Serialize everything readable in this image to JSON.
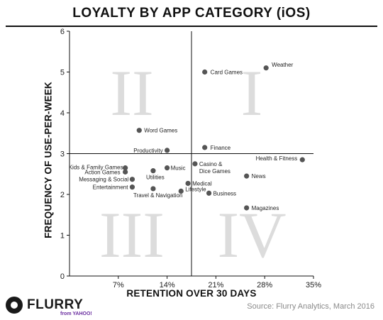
{
  "title": "LOYALTY BY APP CATEGORY (iOS)",
  "source": "Source: Flurry Analytics, March 2016",
  "logo": {
    "word": "FLURRY",
    "sub": "from YAHOO!"
  },
  "chart_data": {
    "type": "scatter",
    "title": "LOYALTY BY APP CATEGORY (iOS)",
    "xlabel": "RETENTION OVER 30 DAYS",
    "ylabel": "FREQUENCY OF USE-PER-WEEK",
    "xlim": [
      0,
      35
    ],
    "ylim": [
      0,
      6
    ],
    "xticks": [
      7,
      14,
      21,
      28,
      35
    ],
    "xtick_labels": [
      "7%",
      "14%",
      "21%",
      "28%",
      "35%"
    ],
    "yticks": [
      0,
      1,
      2,
      3,
      4,
      5,
      6
    ],
    "ytick_labels": [
      "0",
      "1",
      "2",
      "3",
      "4",
      "5",
      "6"
    ],
    "grid": false,
    "divider_x": 17.5,
    "divider_y": 3,
    "quadrant_labels": [
      "I",
      "II",
      "III",
      "IV"
    ],
    "point_color": "#555555",
    "points": [
      {
        "label": "Weather",
        "x": 28.2,
        "y": 5.1
      },
      {
        "label": "Card Games",
        "x": 19.4,
        "y": 5.0
      },
      {
        "label": "Word Games",
        "x": 10.0,
        "y": 3.57
      },
      {
        "label": "Productivity",
        "x": 14.0,
        "y": 3.08
      },
      {
        "label": "Finance",
        "x": 19.4,
        "y": 3.15
      },
      {
        "label": "Health & Fitness",
        "x": 33.4,
        "y": 2.85
      },
      {
        "label": "Casino & Dice Games",
        "x": 18.0,
        "y": 2.75
      },
      {
        "label": "Kids & Family Games",
        "x": 8.0,
        "y": 2.65
      },
      {
        "label": "Action Games",
        "x": 8.0,
        "y": 2.55
      },
      {
        "label": "Music",
        "x": 14.0,
        "y": 2.65
      },
      {
        "label": "Utilities",
        "x": 12.0,
        "y": 2.58
      },
      {
        "label": "Messaging & Social",
        "x": 9.0,
        "y": 2.37
      },
      {
        "label": "News",
        "x": 25.4,
        "y": 2.45
      },
      {
        "label": "Medical",
        "x": 17.0,
        "y": 2.27
      },
      {
        "label": "Entertainment",
        "x": 9.0,
        "y": 2.18
      },
      {
        "label": "Travel & Navigation",
        "x": 12.0,
        "y": 2.14
      },
      {
        "label": "Lifestyle",
        "x": 16.0,
        "y": 2.08
      },
      {
        "label": "Business",
        "x": 20.0,
        "y": 2.03
      },
      {
        "label": "Magazines",
        "x": 25.4,
        "y": 1.67
      }
    ]
  }
}
